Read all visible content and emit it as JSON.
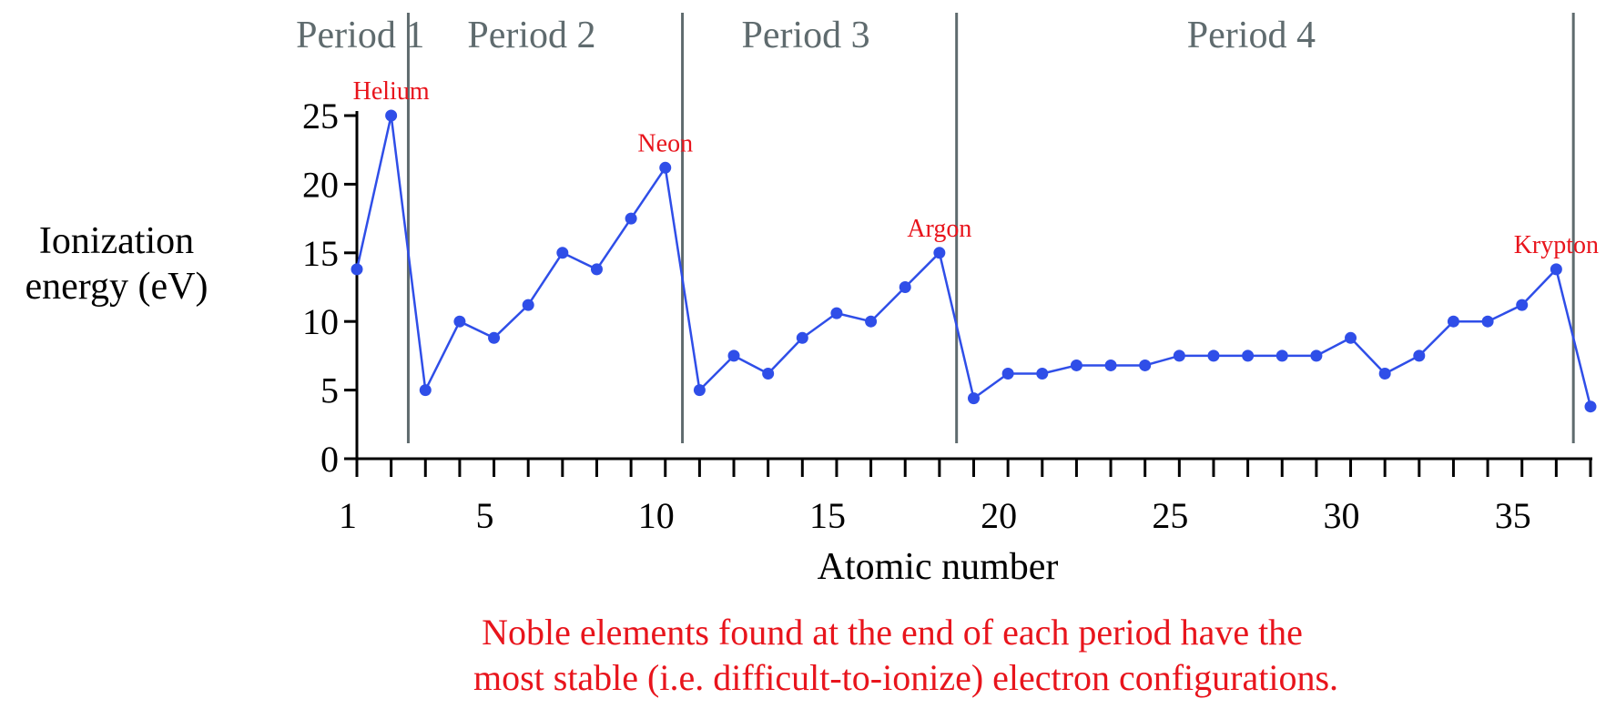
{
  "colors": {
    "series": "#2f4ee8",
    "annotation": "#e8141c",
    "period_text": "#5f6b6e",
    "divider": "#5f6b6e",
    "axis": "#000000"
  },
  "chart_data": {
    "type": "line",
    "title": "",
    "xlabel": "Atomic number",
    "ylabel_lines": [
      "Ionization",
      "energy (eV)"
    ],
    "xlim": [
      1,
      37
    ],
    "ylim": [
      0,
      25
    ],
    "x_ticks": [
      1,
      2,
      3,
      4,
      5,
      6,
      7,
      8,
      9,
      10,
      11,
      12,
      13,
      14,
      15,
      16,
      17,
      18,
      19,
      20,
      21,
      22,
      23,
      24,
      25,
      26,
      27,
      28,
      29,
      30,
      31,
      32,
      33,
      34,
      35,
      36,
      37
    ],
    "x_tick_labels": [
      {
        "value": 1,
        "label": "1"
      },
      {
        "value": 5,
        "label": "5"
      },
      {
        "value": 10,
        "label": "10"
      },
      {
        "value": 15,
        "label": "15"
      },
      {
        "value": 20,
        "label": "20"
      },
      {
        "value": 25,
        "label": "25"
      },
      {
        "value": 30,
        "label": "30"
      },
      {
        "value": 35,
        "label": "35"
      }
    ],
    "y_ticks": [
      0,
      5,
      10,
      15,
      20,
      25
    ],
    "y_tick_labels": [
      "0",
      "5",
      "10",
      "15",
      "20",
      "25"
    ],
    "grid": false,
    "series": [
      {
        "x": [
          1,
          2,
          3,
          4,
          5,
          6,
          7,
          8,
          9,
          10,
          11,
          12,
          13,
          14,
          15,
          16,
          17,
          18,
          19,
          20,
          21,
          22,
          23,
          24,
          25,
          26,
          27,
          28,
          29,
          30,
          31,
          32,
          33,
          34,
          35,
          36,
          37
        ],
        "values": [
          13.8,
          25,
          5,
          10,
          8.8,
          11.2,
          15,
          13.8,
          17.5,
          21.2,
          5,
          7.5,
          6.2,
          8.8,
          10.6,
          10,
          12.5,
          15,
          4.4,
          6.2,
          6.2,
          6.8,
          6.8,
          6.8,
          7.5,
          7.5,
          7.5,
          7.5,
          7.5,
          8.8,
          6.2,
          7.5,
          10,
          10,
          11.2,
          13.8,
          3.8
        ]
      }
    ],
    "period_dividers": [
      2.5,
      10.5,
      18.5,
      36.5
    ],
    "periods": [
      {
        "label": "Period 1",
        "center": 1.1
      },
      {
        "label": "Period 2",
        "center": 6.1
      },
      {
        "label": "Period 3",
        "center": 14.1
      },
      {
        "label": "Period 4",
        "center": 27.1
      }
    ],
    "annotations": [
      {
        "text": "Helium",
        "x": 2,
        "y": 25
      },
      {
        "text": "Neon",
        "x": 10,
        "y": 21.2
      },
      {
        "text": "Argon",
        "x": 18,
        "y": 15
      },
      {
        "text": "Krypton",
        "x": 36,
        "y": 13.8
      }
    ],
    "caption_lines": [
      "Noble elements found at the end of each period have the",
      "most stable (i.e. difficult-to-ionize) electron configurations."
    ]
  }
}
